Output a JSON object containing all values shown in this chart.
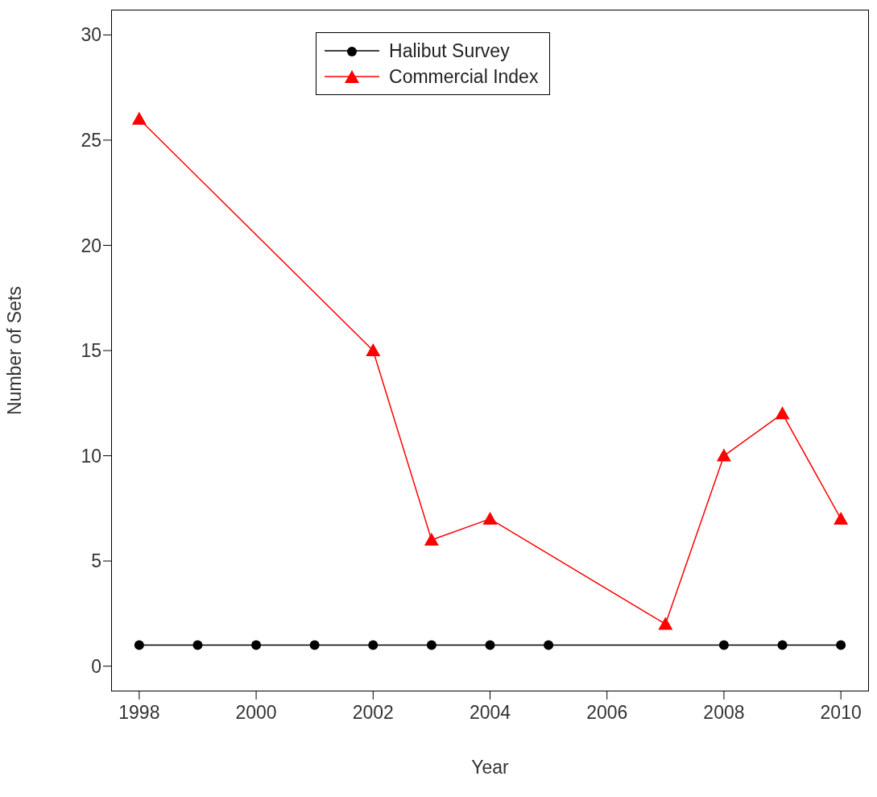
{
  "chart_data": {
    "type": "line",
    "xlabel": "Year",
    "ylabel": "Number of Sets",
    "xlim": [
      1997.52,
      2010.48
    ],
    "xticks": [
      1998,
      2000,
      2002,
      2004,
      2006,
      2008,
      2010
    ],
    "ylim": [
      -1.2,
      31.2
    ],
    "yticks": [
      0,
      5,
      10,
      15,
      20,
      25,
      30
    ],
    "grid": false,
    "legend": "top",
    "line_style": "solid",
    "series": [
      {
        "name": "Halibut Survey",
        "color": "#000000",
        "marker": "circle",
        "x": [
          1998,
          1999,
          2000,
          2001,
          2002,
          2003,
          2004,
          2005,
          2008,
          2009,
          2010
        ],
        "values": [
          1,
          1,
          1,
          1,
          1,
          1,
          1,
          1,
          1,
          1,
          1
        ]
      },
      {
        "name": "Commercial Index",
        "color": "#ff0000",
        "marker": "triangle",
        "x": [
          1998,
          2002,
          2003,
          2004,
          2007,
          2008,
          2009,
          2010
        ],
        "values": [
          26,
          15,
          6,
          7,
          2,
          10,
          12,
          7
        ]
      }
    ]
  }
}
